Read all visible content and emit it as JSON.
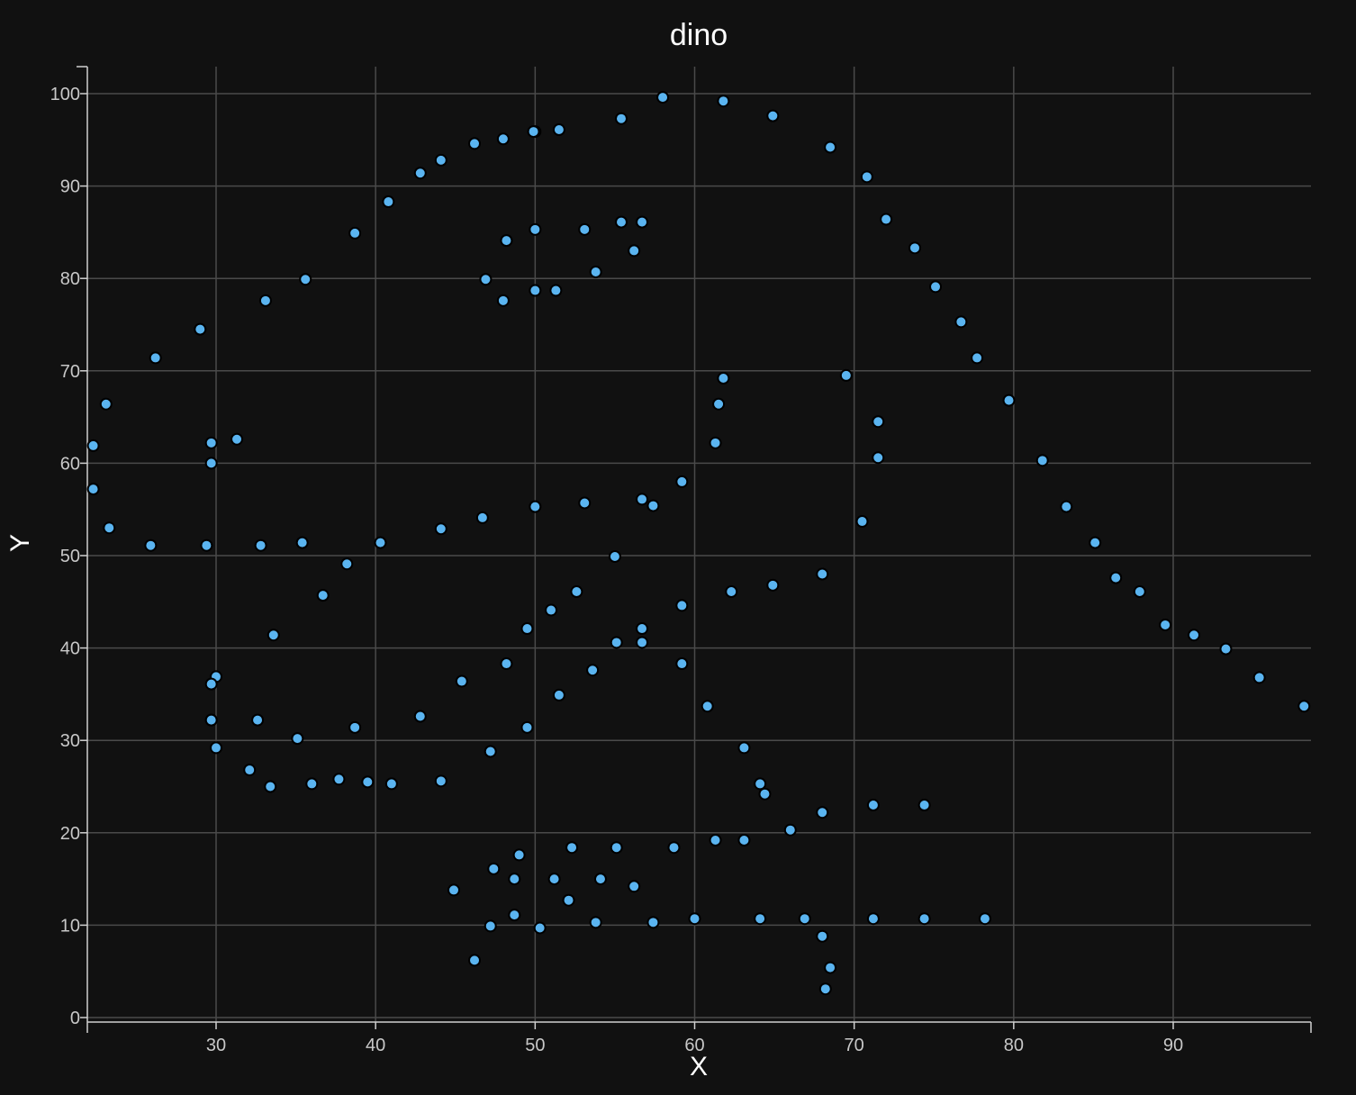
{
  "chart_data": {
    "type": "scatter",
    "title": "dino",
    "xlabel": "X",
    "ylabel": "Y",
    "xlim": [
      22,
      98.5
    ],
    "ylim": [
      0,
      103
    ],
    "xticks": [
      30,
      40,
      50,
      60,
      70,
      80,
      90
    ],
    "yticks": [
      0,
      10,
      20,
      30,
      40,
      50,
      60,
      70,
      80,
      90,
      100
    ],
    "grid": true,
    "marker_color": "#5ab4f0",
    "background": "#111111",
    "points": [
      [
        58.0,
        99.6
      ],
      [
        61.8,
        99.2
      ],
      [
        64.9,
        97.6
      ],
      [
        55.4,
        97.3
      ],
      [
        51.5,
        96.1
      ],
      [
        50.0,
        95.9
      ],
      [
        48.0,
        95.1
      ],
      [
        46.2,
        94.6
      ],
      [
        44.1,
        92.8
      ],
      [
        42.8,
        91.4
      ],
      [
        40.8,
        88.3
      ],
      [
        38.7,
        84.9
      ],
      [
        35.6,
        79.9
      ],
      [
        33.1,
        77.6
      ],
      [
        29.0,
        74.5
      ],
      [
        26.2,
        71.4
      ],
      [
        23.1,
        66.4
      ],
      [
        22.3,
        61.9
      ],
      [
        22.3,
        57.2
      ],
      [
        23.3,
        53.0
      ],
      [
        25.9,
        51.1
      ],
      [
        29.4,
        51.1
      ],
      [
        32.8,
        51.1
      ],
      [
        35.4,
        51.4
      ],
      [
        38.2,
        49.1
      ],
      [
        36.7,
        45.7
      ],
      [
        33.6,
        41.4
      ],
      [
        30.0,
        36.9
      ],
      [
        29.7,
        36.1
      ],
      [
        29.7,
        32.2
      ],
      [
        30.0,
        29.2
      ],
      [
        32.1,
        26.8
      ],
      [
        36.0,
        25.3
      ],
      [
        37.7,
        25.8
      ],
      [
        39.5,
        25.5
      ],
      [
        41.0,
        25.3
      ],
      [
        44.1,
        25.6
      ],
      [
        47.2,
        28.8
      ],
      [
        49.5,
        31.4
      ],
      [
        51.5,
        34.9
      ],
      [
        53.6,
        37.6
      ],
      [
        56.7,
        40.6
      ],
      [
        59.2,
        44.6
      ],
      [
        62.3,
        46.1
      ],
      [
        64.9,
        46.8
      ],
      [
        68.0,
        48.0
      ],
      [
        70.5,
        53.7
      ],
      [
        71.5,
        60.6
      ],
      [
        71.5,
        64.5
      ],
      [
        69.5,
        69.5
      ],
      [
        61.8,
        69.2
      ],
      [
        61.5,
        66.4
      ],
      [
        61.3,
        62.2
      ],
      [
        59.2,
        58.0
      ],
      [
        57.4,
        55.4
      ],
      [
        56.7,
        56.1
      ],
      [
        53.1,
        55.7
      ],
      [
        50.0,
        55.3
      ],
      [
        46.7,
        54.1
      ],
      [
        44.1,
        52.9
      ],
      [
        40.3,
        51.4
      ],
      [
        49.0,
        17.6
      ],
      [
        47.4,
        16.1
      ],
      [
        50.3,
        9.7
      ],
      [
        47.2,
        9.9
      ],
      [
        44.9,
        13.8
      ],
      [
        46.2,
        6.2
      ],
      [
        48.7,
        11.1
      ],
      [
        48.7,
        15.0
      ],
      [
        51.2,
        15.0
      ],
      [
        52.1,
        12.7
      ],
      [
        53.8,
        10.3
      ],
      [
        56.2,
        14.2
      ],
      [
        57.4,
        10.3
      ],
      [
        58.7,
        18.4
      ],
      [
        61.3,
        19.2
      ],
      [
        63.1,
        19.2
      ],
      [
        66.0,
        20.3
      ],
      [
        68.0,
        22.2
      ],
      [
        71.2,
        23.0
      ],
      [
        74.4,
        23.0
      ],
      [
        78.2,
        10.7
      ],
      [
        74.4,
        10.7
      ],
      [
        71.2,
        10.7
      ],
      [
        66.9,
        10.7
      ],
      [
        64.1,
        10.7
      ],
      [
        60.0,
        10.7
      ],
      [
        68.0,
        8.8
      ],
      [
        68.5,
        5.4
      ],
      [
        68.2,
        3.1
      ],
      [
        63.1,
        29.2
      ],
      [
        64.1,
        25.3
      ],
      [
        64.4,
        24.2
      ],
      [
        60.8,
        33.7
      ],
      [
        59.2,
        38.3
      ],
      [
        55.1,
        40.6
      ],
      [
        56.7,
        42.1
      ],
      [
        55.0,
        49.9
      ],
      [
        52.6,
        46.1
      ],
      [
        51.0,
        44.1
      ],
      [
        49.5,
        42.1
      ],
      [
        48.2,
        38.3
      ],
      [
        45.4,
        36.4
      ],
      [
        42.8,
        32.6
      ],
      [
        38.7,
        31.4
      ],
      [
        35.1,
        30.2
      ],
      [
        32.6,
        32.2
      ],
      [
        29.7,
        32.2
      ],
      [
        31.3,
        62.6
      ],
      [
        29.7,
        60.0
      ],
      [
        29.7,
        62.2
      ],
      [
        33.4,
        25.0
      ],
      [
        49.9,
        95.9
      ],
      [
        53.1,
        85.3
      ],
      [
        56.7,
        86.1
      ],
      [
        55.4,
        86.1
      ],
      [
        56.2,
        83.0
      ],
      [
        53.8,
        80.7
      ],
      [
        51.3,
        78.7
      ],
      [
        50.0,
        78.7
      ],
      [
        48.0,
        77.6
      ],
      [
        46.9,
        79.9
      ],
      [
        48.2,
        84.1
      ],
      [
        50.0,
        85.3
      ],
      [
        52.3,
        18.4
      ],
      [
        55.1,
        18.4
      ],
      [
        54.1,
        15.0
      ],
      [
        79.7,
        66.8
      ],
      [
        77.7,
        71.4
      ],
      [
        76.7,
        75.3
      ],
      [
        75.1,
        79.1
      ],
      [
        73.8,
        83.3
      ],
      [
        72.0,
        86.4
      ],
      [
        70.8,
        91.0
      ],
      [
        68.5,
        94.2
      ],
      [
        81.8,
        60.3
      ],
      [
        83.3,
        55.3
      ],
      [
        85.1,
        51.4
      ],
      [
        86.4,
        47.6
      ],
      [
        87.9,
        46.1
      ],
      [
        89.5,
        42.5
      ],
      [
        91.3,
        41.4
      ],
      [
        93.3,
        39.9
      ],
      [
        95.4,
        36.8
      ],
      [
        98.2,
        33.7
      ]
    ]
  }
}
